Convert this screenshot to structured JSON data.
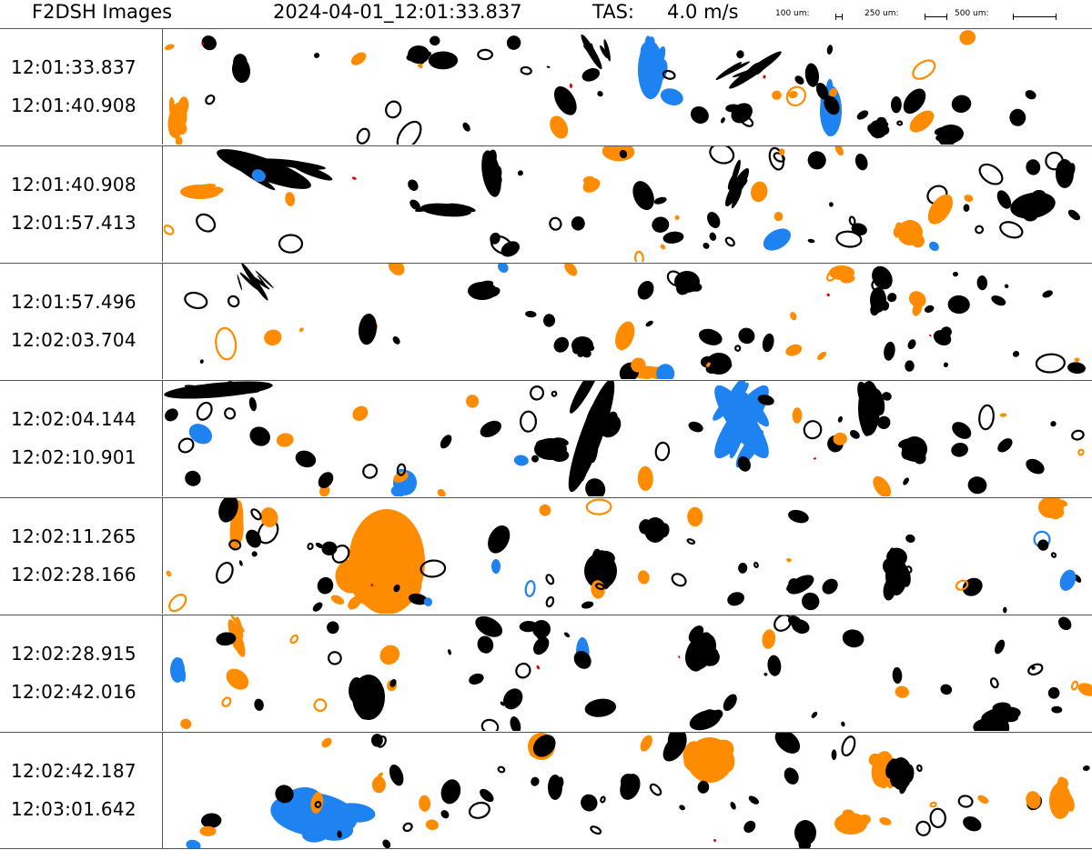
{
  "header": {
    "title": "F2DSH Images",
    "timestamp": "2024-04-01_12:01:33.837",
    "tas_label": "TAS:",
    "tas_value": "4.0 m/s",
    "scale_bars": [
      {
        "label": "100 um:"
      },
      {
        "label": "250 um:"
      },
      {
        "label": "500 um:"
      }
    ]
  },
  "colors": {
    "black_particles": "#000000",
    "orange_particles": "#ff8c00",
    "blue_particles": "#1e82f0",
    "red_artifacts": "#e00000",
    "separator": "#555555"
  },
  "strips": [
    {
      "start": "12:01:33.837",
      "end": "12:01:40.908"
    },
    {
      "start": "12:01:40.908",
      "end": "12:01:57.413"
    },
    {
      "start": "12:01:57.496",
      "end": "12:02:03.704"
    },
    {
      "start": "12:02:04.144",
      "end": "12:02:10.901"
    },
    {
      "start": "12:02:11.265",
      "end": "12:02:28.166"
    },
    {
      "start": "12:02:28.915",
      "end": "12:02:42.016"
    },
    {
      "start": "12:02:42.187",
      "end": "12:03:01.642"
    }
  ]
}
